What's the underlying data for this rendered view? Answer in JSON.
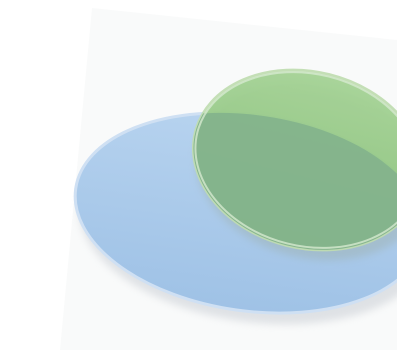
{
  "diagram": {
    "type": "overlapping-ellipses",
    "shapes": [
      {
        "id": "blue-ellipse",
        "fill": "#a8c9ea",
        "edge": "#c8dcf2",
        "shadow": "#e3e7ec"
      },
      {
        "id": "green-ellipse",
        "fill": "#8fc682",
        "edge": "#b9dba9",
        "overlap_fill": "#86b48d",
        "shadow": "#dfe3de"
      }
    ],
    "background": "#ffffff",
    "backdrop_tint": "#f4f5f6"
  }
}
